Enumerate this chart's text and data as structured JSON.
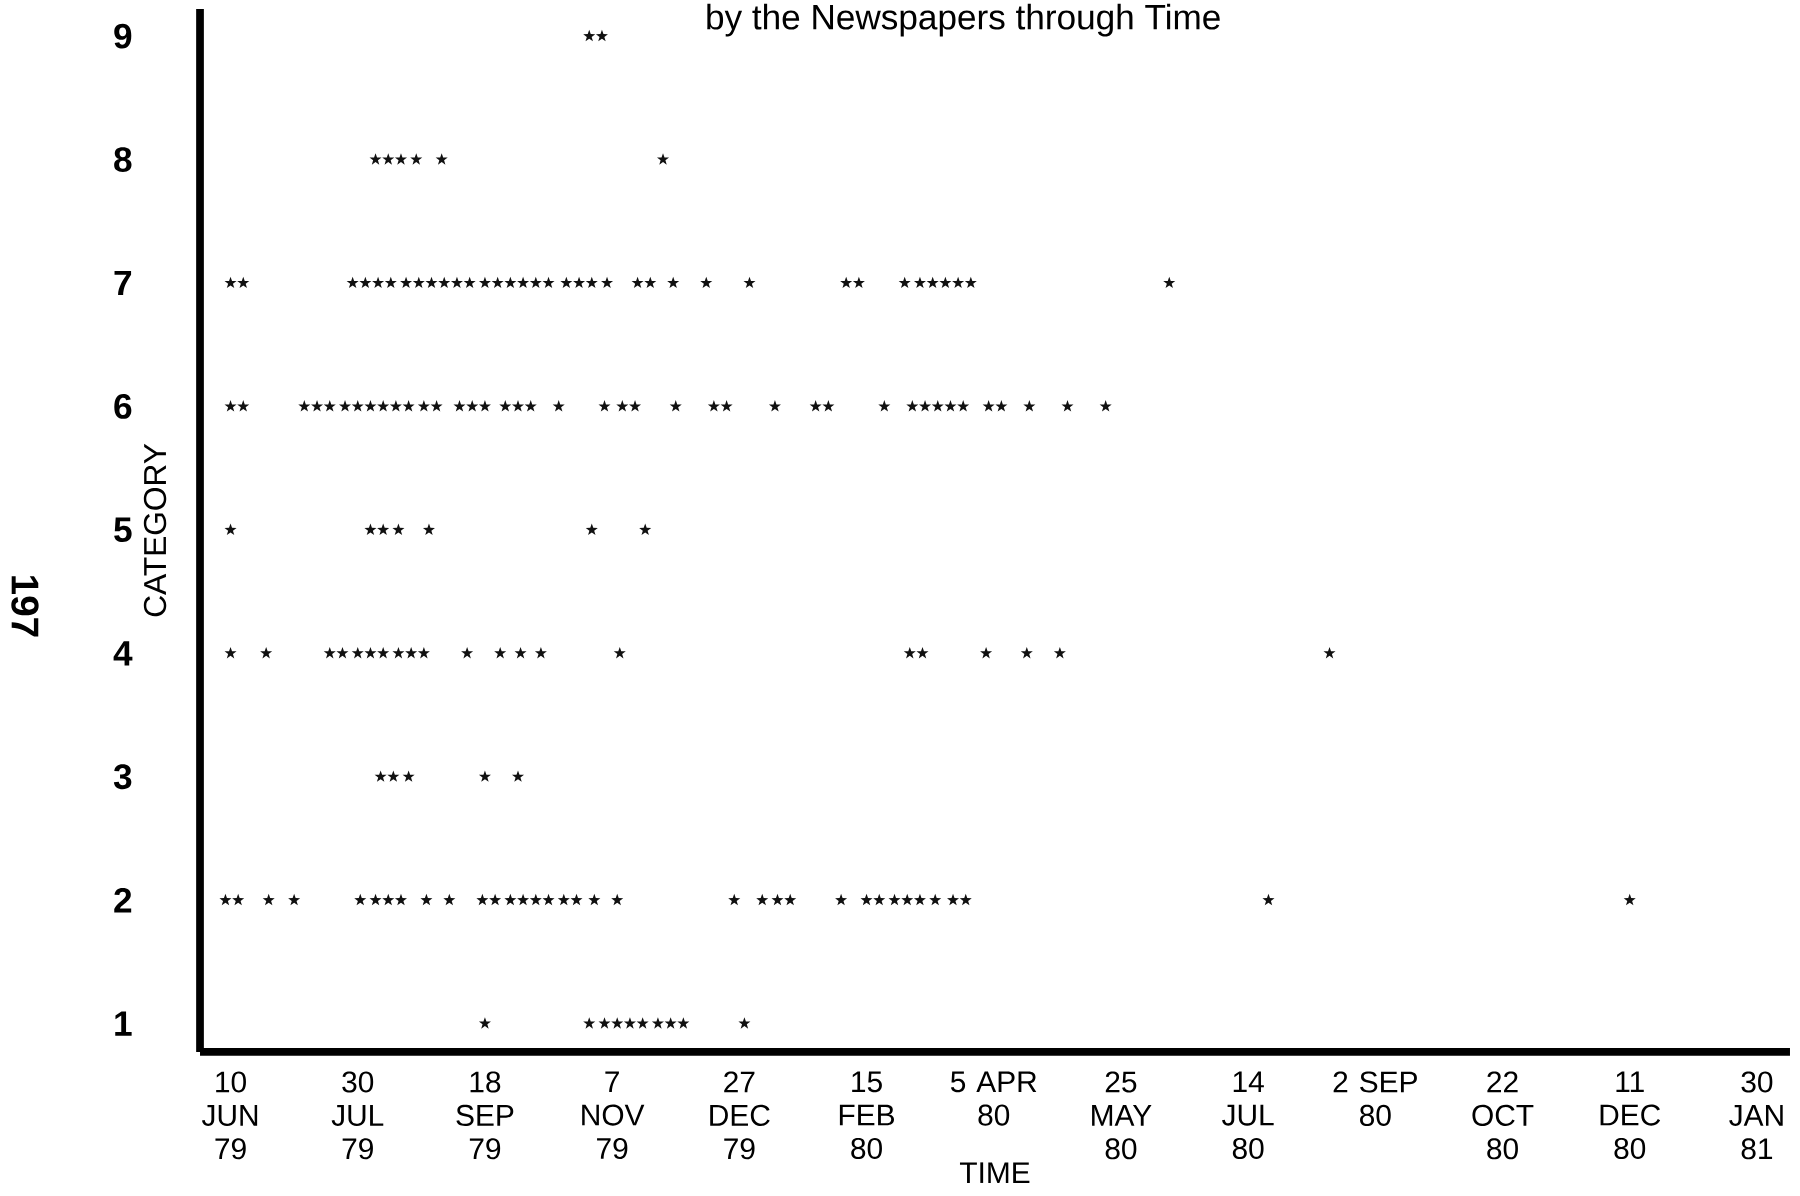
{
  "chart_data": {
    "type": "scatter",
    "title": "by the Newspapers through Time",
    "xlabel": "TIME",
    "ylabel": "CATEGORY",
    "annotations": [
      "197"
    ],
    "marker": "star",
    "color": "#111111",
    "grid": false,
    "xlim": [
      "1979-05-29",
      "1981-02-12"
    ],
    "ylim": [
      0.77,
      9.22
    ],
    "yticks": [
      1,
      2,
      3,
      4,
      5,
      6,
      7,
      8,
      9
    ],
    "xticks": [
      {
        "value": "1979-06-10",
        "label": "10 JUN 79"
      },
      {
        "value": "1979-07-30",
        "label": "30 JUL 79"
      },
      {
        "value": "1979-09-18",
        "label": "18 SEP 79"
      },
      {
        "value": "1979-11-07",
        "label": "7 NOV 79"
      },
      {
        "value": "1979-12-27",
        "label": "27 DEC 79"
      },
      {
        "value": "1980-02-15",
        "label": "15 FEB 80"
      },
      {
        "value": "1980-04-05",
        "label": "5 APR 80"
      },
      {
        "value": "1980-05-25",
        "label": "25 MAY 80"
      },
      {
        "value": "1980-07-14",
        "label": "14 JUL 80"
      },
      {
        "value": "1980-09-02",
        "label": "2 SEP 80"
      },
      {
        "value": "1980-10-22",
        "label": "22 OCT 80"
      },
      {
        "value": "1980-12-11",
        "label": "11 DEC 80"
      },
      {
        "value": "1981-01-30",
        "label": "30 JAN 81"
      }
    ],
    "x": [
      "1979-10-29",
      "1979-11-03",
      "1979-08-06",
      "1979-08-11",
      "1979-08-16",
      "1979-08-22",
      "1979-09-01",
      "1979-11-27",
      "1979-06-10",
      "1979-06-15",
      "1979-07-28",
      "1979-08-02",
      "1979-08-07",
      "1979-08-12",
      "1979-08-18",
      "1979-08-23",
      "1979-08-28",
      "1979-09-02",
      "1979-09-07",
      "1979-09-12",
      "1979-09-18",
      "1979-09-23",
      "1979-09-28",
      "1979-10-03",
      "1979-10-08",
      "1979-10-13",
      "1979-10-20",
      "1979-10-25",
      "1979-10-30",
      "1979-11-05",
      "1979-11-17",
      "1979-11-22",
      "1979-12-01",
      "1979-12-14",
      "1979-12-31",
      "1980-02-07",
      "1980-02-12",
      "1980-03-01",
      "1980-03-07",
      "1980-03-12",
      "1980-03-17",
      "1980-03-22",
      "1980-03-27",
      "1980-06-13",
      "1979-06-10",
      "1979-06-15",
      "1979-07-09",
      "1979-07-14",
      "1979-07-19",
      "1979-07-25",
      "1979-07-30",
      "1979-08-04",
      "1979-08-09",
      "1979-08-14",
      "1979-08-19",
      "1979-08-25",
      "1979-08-30",
      "1979-09-08",
      "1979-09-13",
      "1979-09-18",
      "1979-09-26",
      "1979-10-01",
      "1979-10-06",
      "1979-10-17",
      "1979-11-04",
      "1979-11-11",
      "1979-11-16",
      "1979-12-02",
      "1979-12-17",
      "1979-12-22",
      "1980-01-10",
      "1980-01-26",
      "1980-01-31",
      "1980-02-22",
      "1980-03-04",
      "1980-03-09",
      "1980-03-14",
      "1980-03-19",
      "1980-03-24",
      "1980-04-03",
      "1980-04-08",
      "1980-04-19",
      "1980-05-04",
      "1980-05-19",
      "1979-06-10",
      "1979-08-04",
      "1979-08-09",
      "1979-08-15",
      "1979-08-27",
      "1979-10-30",
      "1979-11-20",
      "1979-06-10",
      "1979-06-24",
      "1979-07-19",
      "1979-07-24",
      "1979-07-30",
      "1979-08-04",
      "1979-08-09",
      "1979-08-15",
      "1979-08-20",
      "1979-08-25",
      "1979-09-11",
      "1979-09-24",
      "1979-10-02",
      "1979-10-10",
      "1979-11-10",
      "1980-03-03",
      "1980-03-08",
      "1980-04-02",
      "1980-04-18",
      "1980-05-01",
      "1980-08-15",
      "1979-08-08",
      "1979-08-13",
      "1979-08-19",
      "1979-09-18",
      "1979-10-01",
      "1979-06-08",
      "1979-06-13",
      "1979-06-25",
      "1979-07-05",
      "1979-07-31",
      "1979-08-06",
      "1979-08-11",
      "1979-08-16",
      "1979-08-26",
      "1979-09-04",
      "1979-09-17",
      "1979-09-22",
      "1979-09-28",
      "1979-10-03",
      "1979-10-08",
      "1979-10-13",
      "1979-10-19",
      "1979-10-24",
      "1979-10-31",
      "1979-11-09",
      "1979-12-25",
      "1980-01-05",
      "1980-01-11",
      "1980-01-16",
      "1980-02-05",
      "1980-02-15",
      "1980-02-20",
      "1980-02-26",
      "1980-03-02",
      "1980-03-07",
      "1980-03-13",
      "1980-03-20",
      "1980-03-25",
      "1980-07-22",
      "1980-12-11",
      "1979-09-18",
      "1979-10-29",
      "1979-11-04",
      "1979-11-09",
      "1979-11-14",
      "1979-11-19",
      "1979-11-25",
      "1979-11-30",
      "1979-12-05",
      "1979-12-29"
    ],
    "values": [
      9,
      9,
      8,
      8,
      8,
      8,
      8,
      8,
      7,
      7,
      7,
      7,
      7,
      7,
      7,
      7,
      7,
      7,
      7,
      7,
      7,
      7,
      7,
      7,
      7,
      7,
      7,
      7,
      7,
      7,
      7,
      7,
      7,
      7,
      7,
      7,
      7,
      7,
      7,
      7,
      7,
      7,
      7,
      7,
      6,
      6,
      6,
      6,
      6,
      6,
      6,
      6,
      6,
      6,
      6,
      6,
      6,
      6,
      6,
      6,
      6,
      6,
      6,
      6,
      6,
      6,
      6,
      6,
      6,
      6,
      6,
      6,
      6,
      6,
      6,
      6,
      6,
      6,
      6,
      6,
      6,
      6,
      6,
      6,
      5,
      5,
      5,
      5,
      5,
      5,
      5,
      4,
      4,
      4,
      4,
      4,
      4,
      4,
      4,
      4,
      4,
      4,
      4,
      4,
      4,
      4,
      4,
      4,
      4,
      4,
      4,
      4,
      3,
      3,
      3,
      3,
      3,
      2,
      2,
      2,
      2,
      2,
      2,
      2,
      2,
      2,
      2,
      2,
      2,
      2,
      2,
      2,
      2,
      2,
      2,
      2,
      2,
      2,
      2,
      2,
      2,
      2,
      2,
      2,
      2,
      2,
      2,
      2,
      2,
      2,
      2,
      2,
      1,
      1,
      1,
      1,
      1,
      1,
      1,
      1,
      1,
      1
    ]
  }
}
